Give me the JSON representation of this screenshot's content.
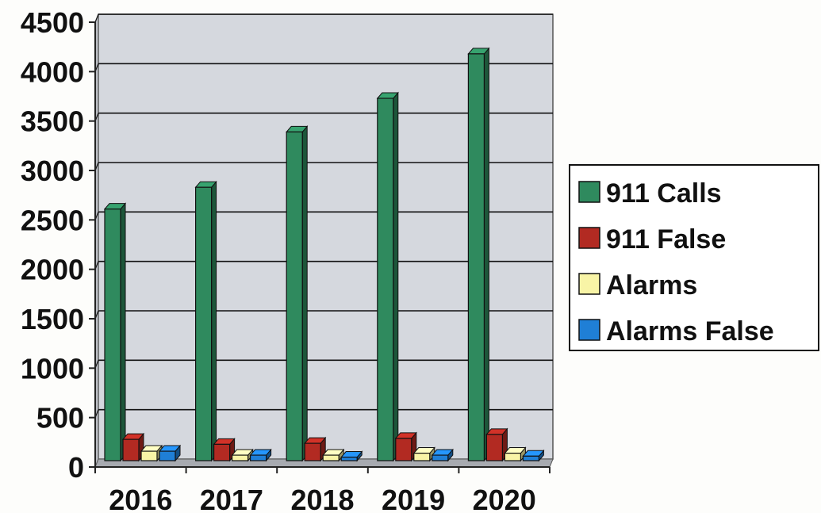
{
  "chart_data": {
    "type": "bar",
    "title": "",
    "xlabel": "",
    "ylabel": "",
    "categories": [
      "2016",
      "2017",
      "2018",
      "2019",
      "2020"
    ],
    "series": [
      {
        "name": "911 Calls",
        "color": "#2f8a5e",
        "values": [
          2610,
          2830,
          3390,
          3730,
          4180
        ]
      },
      {
        "name": "911 False",
        "color": "#b22a22",
        "values": [
          280,
          230,
          240,
          290,
          330
        ]
      },
      {
        "name": "Alarms",
        "color": "#f8f4a6",
        "values": [
          160,
          120,
          120,
          140,
          140
        ]
      },
      {
        "name": "Alarms False",
        "color": "#1f7fd6",
        "values": [
          160,
          120,
          100,
          120,
          110
        ]
      }
    ],
    "ylim": [
      0,
      4500
    ],
    "yticks": [
      "0",
      "500",
      "1000",
      "1500",
      "2000",
      "2500",
      "3000",
      "3500",
      "4000",
      "4500"
    ],
    "grid": true,
    "legend_position": "right",
    "plot_background": "#d5d8de"
  }
}
